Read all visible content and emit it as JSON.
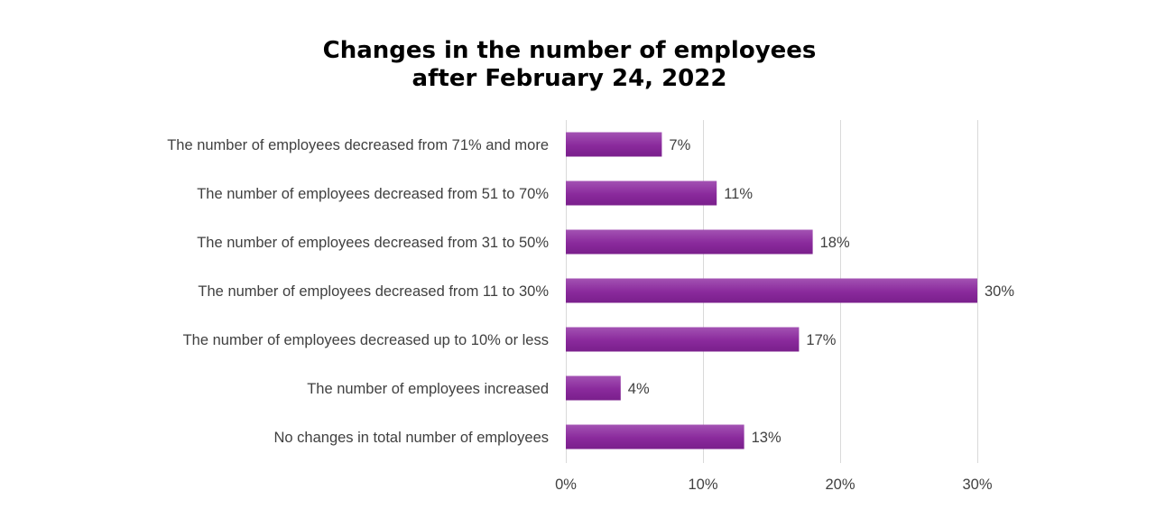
{
  "chart_data": {
    "type": "bar",
    "orientation": "horizontal",
    "title_lines": [
      "Changes in the number of employees",
      "after February 24, 2022"
    ],
    "categories": [
      "The number of employees decreased from 71% and more",
      "The number of employees decreased from 51 to 70%",
      "The number of employees decreased from 31 to 50%",
      "The number of employees decreased from 11 to 30%",
      "The number of employees decreased up to 10% or less",
      "The number of employees increased",
      "No changes in total number of employees"
    ],
    "values": [
      7,
      11,
      18,
      30,
      17,
      4,
      13
    ],
    "value_labels": [
      "7%",
      "11%",
      "18%",
      "30%",
      "17%",
      "4%",
      "13%"
    ],
    "xlim": [
      0,
      30
    ],
    "xticks": [
      0,
      10,
      20,
      30
    ],
    "xtick_labels": [
      "0%",
      "10%",
      "20%",
      "30%"
    ],
    "xlabel": "",
    "ylabel": "",
    "grid": true,
    "legend": "none",
    "colors": {
      "bar_top": "#a352b3",
      "bar_mid": "#8a2a9c",
      "bar_bottom": "#7a1f8c",
      "grid": "#d9d9d9",
      "text": "#404040",
      "title": "#000000"
    }
  }
}
